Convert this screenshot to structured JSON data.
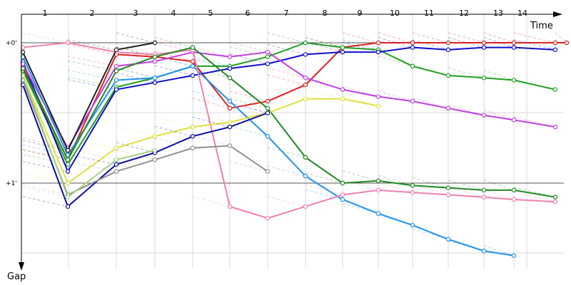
{
  "chart_data": {
    "type": "line",
    "x_axis_title": "Time",
    "y_axis_title": "Gap",
    "lap_labels": [
      "1",
      "2",
      "3",
      "4",
      "5",
      "6",
      "7",
      "8",
      "9",
      "10",
      "11",
      "12",
      "13",
      "14"
    ],
    "y_tick_labels": [
      {
        "label": "+0'",
        "value": 0
      },
      {
        "label": "+1'",
        "value": 60
      }
    ],
    "ylim": [
      0,
      90
    ],
    "grid": true,
    "series": [
      {
        "color": "#e02020",
        "values": [
          10,
          50,
          5,
          6,
          8,
          28,
          25,
          18,
          2,
          0,
          0,
          0,
          0,
          0,
          0,
          0
        ]
      },
      {
        "color": "#20a020",
        "values": [
          12,
          52,
          19,
          15,
          10,
          10,
          6,
          0,
          2,
          3,
          10,
          14,
          15,
          16,
          20
        ]
      },
      {
        "color": "#1010cc",
        "values": [
          8,
          55,
          20,
          17,
          14,
          11,
          9,
          5,
          4,
          4,
          2,
          3,
          2,
          2,
          3
        ]
      },
      {
        "color": "#c040e0",
        "values": [
          9,
          45,
          10,
          8,
          4,
          6,
          4,
          15,
          20,
          23,
          25,
          28,
          31,
          33,
          36
        ]
      },
      {
        "color": "#2090ee",
        "values": [
          6,
          48,
          16,
          15,
          10,
          25,
          40,
          57,
          67,
          73,
          78,
          84,
          89,
          91
        ]
      },
      {
        "color": "#f080b0",
        "values": [
          2,
          0,
          4,
          5,
          3,
          70,
          75,
          70,
          65,
          63,
          64,
          65,
          66,
          67,
          68
        ]
      },
      {
        "color": "#208820",
        "values": [
          11,
          50,
          12,
          6,
          2,
          15,
          28,
          49,
          60,
          59,
          61,
          62,
          63,
          63,
          66
        ]
      },
      {
        "color": "#e0e040",
        "values": [
          14,
          60,
          45,
          40,
          36,
          34,
          30,
          24,
          24,
          27
        ]
      },
      {
        "color": "#0a0aa0",
        "values": [
          18,
          70,
          52,
          47,
          40,
          36,
          30
        ]
      },
      {
        "color": "#909090",
        "values": [
          16,
          65,
          55,
          50,
          45,
          44,
          55
        ]
      },
      {
        "color": "#aad080",
        "values": [
          14,
          66,
          50,
          46
        ]
      },
      {
        "color": "#202020",
        "values": [
          4,
          46,
          3,
          0
        ]
      }
    ]
  }
}
